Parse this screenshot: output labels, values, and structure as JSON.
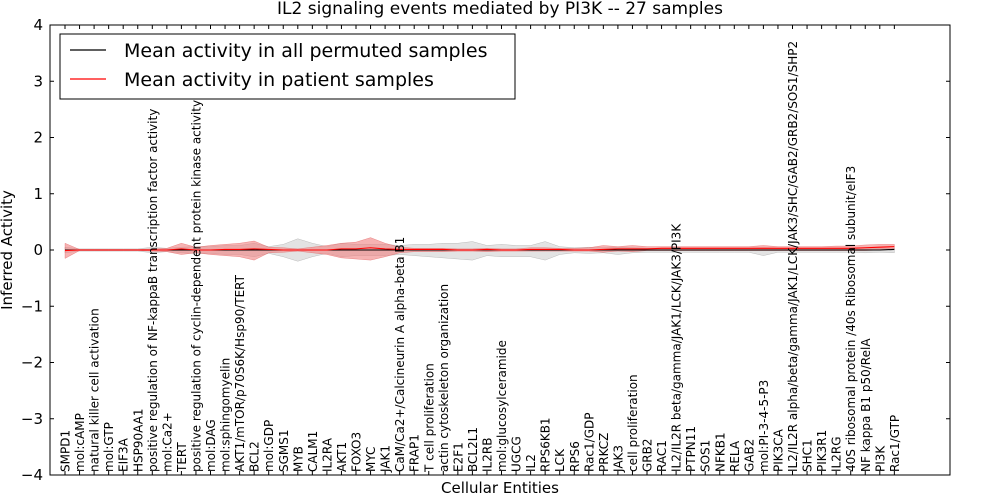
{
  "chart_data": {
    "type": "line",
    "title": "IL2 signaling events mediated by PI3K -- 27 samples",
    "xlabel": "Cellular Entities",
    "ylabel": "Inferred Activity",
    "ylim": [
      -4,
      4
    ],
    "yticks": [
      -4,
      -3,
      -2,
      -1,
      0,
      1,
      2,
      3,
      4
    ],
    "ytick_labels": [
      "−4",
      "−3",
      "−2",
      "−1",
      "0",
      "1",
      "2",
      "3",
      "4"
    ],
    "legend_position": "top-left",
    "grid": false,
    "colors": {
      "permuted": "#000000",
      "patient": "#ff0000",
      "patient_band": "#f08080",
      "permuted_band": "#b0b0b0"
    },
    "categories": [
      "SMPD1",
      "mol:cAMP",
      "natural killer cell activation",
      "mol:GTP",
      "EIF3A",
      "HSP90AA1",
      "positive regulation of NF-kappaB transcription factor activity",
      "mol:Ca2+",
      "TERT",
      "positive regulation of cyclin-dependent protein kinase activity",
      "mol:DAG",
      "mol:sphingomyelin",
      "AKT1/mTOR/p70S6K/Hsp90/TERT",
      "BCL2",
      "mol:GDP",
      "SGMS1",
      "MYB",
      "CALM1",
      "IL2RA",
      "AKT1",
      "FOXO3",
      "MYC",
      "JAK1",
      "CaM/Ca2+/Calcineurin A alpha-beta B1",
      "FRAP1",
      "T cell proliferation",
      "actin cytoskeleton organization",
      "E2F1",
      "BCL2L1",
      "IL2RB",
      "mol:glucosylceramide",
      "UGCG",
      "IL2",
      "RPS6KB1",
      "LCK",
      "RPS6",
      "Rac1/GDP",
      "PRKCZ",
      "JAK3",
      "cell proliferation",
      "GRB2",
      "RAC1",
      "IL2/IL2R beta/gamma/JAK1/LCK/JAK3/PI3K",
      "PTPN11",
      "SOS1",
      "NFKB1",
      "RELA",
      "GAB2",
      "mol:PI-3-4-5-P3",
      "PIK3CA",
      "IL2/IL2R alpha/beta/gamma/JAK1/LCK/JAK3/SHC/GAB2/GRB2/SOS1/SHP2",
      "SHC1",
      "PIK3R1",
      "IL2RG",
      "40S ribosomal protein /40s Ribosomal subunit/eIF3",
      "NF kappa B1 p50/RelA",
      "PI3K",
      "Rac1/GTP"
    ],
    "series": [
      {
        "name": "Mean activity in all permuted samples",
        "values": [
          0,
          0,
          0,
          0,
          0,
          0,
          0,
          0,
          0,
          0,
          0,
          0,
          0,
          0,
          0,
          0,
          0,
          0,
          0,
          0,
          0,
          0,
          0,
          0,
          0,
          0,
          0,
          0,
          0,
          0,
          0,
          0,
          0,
          0,
          0,
          0,
          0,
          0,
          0,
          0,
          0,
          0,
          0,
          0,
          0,
          0,
          0,
          0,
          0,
          0,
          0,
          0,
          0,
          0,
          0,
          0,
          0,
          0.01
        ],
        "band_upper": [
          0.05,
          0.02,
          0.02,
          0.02,
          0.02,
          0.02,
          0.05,
          0.03,
          0.05,
          0.06,
          0.06,
          0.08,
          0.08,
          0.12,
          0.06,
          0.1,
          0.2,
          0.12,
          0.06,
          0.12,
          0.1,
          0.1,
          0.1,
          0.08,
          0.1,
          0.1,
          0.12,
          0.12,
          0.15,
          0.08,
          0.1,
          0.08,
          0.08,
          0.15,
          0.06,
          0.04,
          0.05,
          0.04,
          0.05,
          0.04,
          0.03,
          0.03,
          0.03,
          0.03,
          0.03,
          0.03,
          0.03,
          0.03,
          0.04,
          0.03,
          0.03,
          0.03,
          0.03,
          0.03,
          0.03,
          0.04,
          0.03,
          0.03
        ],
        "band_lower": [
          -0.05,
          -0.02,
          -0.02,
          -0.02,
          -0.02,
          -0.02,
          -0.05,
          -0.03,
          -0.05,
          -0.06,
          -0.06,
          -0.08,
          -0.08,
          -0.12,
          -0.06,
          -0.12,
          -0.2,
          -0.12,
          -0.06,
          -0.12,
          -0.1,
          -0.1,
          -0.1,
          -0.08,
          -0.1,
          -0.12,
          -0.14,
          -0.16,
          -0.18,
          -0.1,
          -0.12,
          -0.12,
          -0.12,
          -0.18,
          -0.08,
          -0.05,
          -0.06,
          -0.05,
          -0.08,
          -0.05,
          -0.04,
          -0.04,
          -0.04,
          -0.04,
          -0.04,
          -0.04,
          -0.04,
          -0.04,
          -0.1,
          -0.04,
          -0.04,
          -0.04,
          -0.04,
          -0.04,
          -0.04,
          -0.05,
          -0.04,
          -0.05
        ]
      },
      {
        "name": "Mean activity in patient samples",
        "values": [
          -0.01,
          0,
          0,
          0,
          0,
          0,
          0,
          0,
          0.02,
          0,
          0,
          0.01,
          0.01,
          0.02,
          0.01,
          0,
          0,
          0,
          0,
          0.02,
          0.02,
          0.04,
          0.02,
          0.01,
          0.01,
          0.01,
          0.01,
          0,
          0,
          0.01,
          0,
          0,
          0.01,
          0.01,
          0.01,
          0,
          0,
          0.01,
          0.02,
          0.02,
          0.02,
          0.03,
          0.03,
          0.03,
          0.03,
          0.03,
          0.03,
          0.03,
          0.03,
          0.03,
          0.03,
          0.03,
          0.03,
          0.03,
          0.03,
          0.04,
          0.05,
          0.06
        ],
        "band_upper": [
          0.12,
          0.01,
          0.01,
          0.01,
          0.01,
          0.01,
          0.02,
          0.03,
          0.12,
          0.05,
          0.08,
          0.1,
          0.12,
          0.16,
          0.05,
          0.04,
          0.02,
          0.05,
          0.08,
          0.12,
          0.14,
          0.22,
          0.12,
          0.05,
          0.03,
          0.03,
          0.03,
          0.02,
          0.02,
          0.03,
          0.02,
          0.02,
          0.04,
          0.04,
          0.03,
          0.03,
          0.04,
          0.08,
          0.06,
          0.08,
          0.06,
          0.06,
          0.06,
          0.06,
          0.06,
          0.06,
          0.06,
          0.06,
          0.08,
          0.06,
          0.06,
          0.06,
          0.06,
          0.07,
          0.07,
          0.09,
          0.1,
          0.1
        ],
        "band_lower": [
          -0.15,
          -0.01,
          -0.01,
          -0.01,
          -0.01,
          -0.01,
          -0.02,
          -0.03,
          -0.08,
          -0.05,
          -0.08,
          -0.1,
          -0.12,
          -0.18,
          -0.05,
          -0.04,
          -0.02,
          -0.05,
          -0.08,
          -0.14,
          -0.16,
          -0.18,
          -0.12,
          -0.05,
          -0.03,
          -0.03,
          -0.03,
          -0.02,
          -0.02,
          -0.03,
          -0.02,
          -0.02,
          -0.02,
          -0.02,
          -0.02,
          -0.02,
          -0.02,
          -0.04,
          -0.02,
          -0.03,
          -0.01,
          -0.01,
          -0.01,
          -0.01,
          -0.01,
          -0.01,
          -0.01,
          -0.01,
          -0.01,
          -0.01,
          -0.01,
          -0.01,
          -0.01,
          -0.01,
          -0.01,
          -0.01,
          0,
          0.01
        ]
      }
    ]
  }
}
